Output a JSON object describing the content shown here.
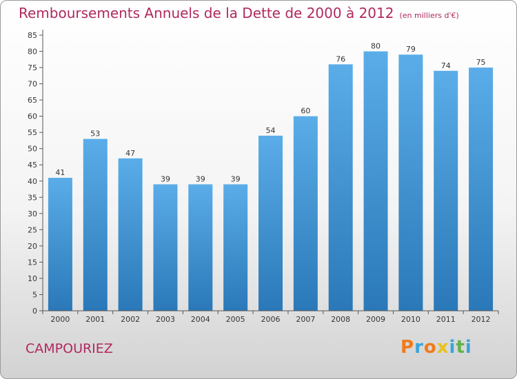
{
  "header": {
    "title": "Remboursements Annuels de la Dette de 2000 à 2012",
    "unit": "(en milliers d'€)"
  },
  "footer": {
    "commune": "CAMPOURIEZ",
    "logo": "Proxiti"
  },
  "colors": {
    "title": "#b0285f",
    "bar_top": "#5aade8",
    "bar_bottom": "#2a78b8",
    "logo_letters": [
      "#f07a1a",
      "#3aa4dc",
      "#f07a1a",
      "#e8c21a",
      "#3aa4dc",
      "#62b24a",
      "#3aa4dc"
    ]
  },
  "chart_data": {
    "type": "bar",
    "categories": [
      "2000",
      "2001",
      "2002",
      "2003",
      "2004",
      "2005",
      "2006",
      "2007",
      "2008",
      "2009",
      "2010",
      "2011",
      "2012"
    ],
    "values": [
      41,
      53,
      47,
      39,
      39,
      39,
      54,
      60,
      76,
      80,
      79,
      74,
      75
    ],
    "ylim": [
      0,
      85
    ],
    "yticks": [
      0,
      5,
      10,
      15,
      20,
      25,
      30,
      35,
      40,
      45,
      50,
      55,
      60,
      65,
      70,
      75,
      80,
      85
    ],
    "grid": false,
    "legend": "none"
  }
}
